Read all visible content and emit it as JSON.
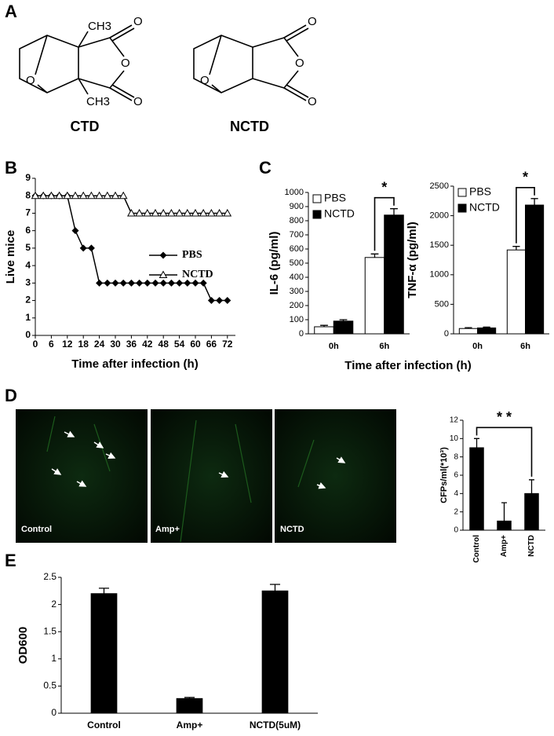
{
  "panel_labels": [
    "A",
    "B",
    "C",
    "D",
    "E"
  ],
  "structures": [
    {
      "name": "CTD",
      "atoms": [
        "CH3",
        "CH3",
        "O",
        "O",
        "O",
        "O"
      ]
    },
    {
      "name": "NCTD",
      "atoms": [
        "O",
        "O",
        "O",
        "O"
      ]
    }
  ],
  "images": [
    {
      "label": "Control"
    },
    {
      "label": "Amp+"
    },
    {
      "label": "NCTD"
    }
  ],
  "chart_data": [
    {
      "type": "line",
      "xlabel": "Time after infection (h)",
      "ylabel": "Live mice",
      "x": [
        0,
        3,
        6,
        9,
        12,
        15,
        18,
        21,
        24,
        27,
        30,
        33,
        36,
        39,
        42,
        45,
        48,
        51,
        54,
        57,
        60,
        63,
        66,
        69,
        72
      ],
      "series": [
        {
          "name": "PBS",
          "color": "#000000",
          "marker": "diamond",
          "values": [
            8,
            8,
            8,
            8,
            8,
            6,
            5,
            5,
            3,
            3,
            3,
            3,
            3,
            3,
            3,
            3,
            3,
            3,
            3,
            3,
            3,
            3,
            2,
            2,
            2
          ]
        },
        {
          "name": "NCTD",
          "color": "#000000",
          "marker": "triangle",
          "values": [
            8,
            8,
            8,
            8,
            8,
            8,
            8,
            8,
            8,
            8,
            8,
            8,
            7,
            7,
            7,
            7,
            7,
            7,
            7,
            7,
            7,
            7,
            7,
            7,
            7
          ]
        }
      ],
      "xlim": [
        0,
        75
      ],
      "xticks": [
        0,
        6,
        12,
        18,
        24,
        30,
        36,
        42,
        48,
        54,
        60,
        66,
        72
      ],
      "ylim": [
        0,
        9
      ],
      "yticks": [
        0,
        1,
        2,
        3,
        4,
        5,
        6,
        7,
        8,
        9
      ],
      "legend": "right"
    },
    {
      "type": "bar",
      "xlabel": "Time after infection (h)",
      "ylabel": "IL-6 (pg/ml)",
      "categories": [
        "0h",
        "6h"
      ],
      "series": [
        {
          "name": "PBS",
          "color": "#ffffff",
          "values": [
            50,
            540
          ],
          "errors": [
            10,
            25
          ]
        },
        {
          "name": "NCTD",
          "color": "#000000",
          "values": [
            90,
            840
          ],
          "errors": [
            10,
            45
          ]
        }
      ],
      "ylim": [
        0,
        1000
      ],
      "yticks": [
        0,
        100,
        200,
        300,
        400,
        500,
        600,
        700,
        800,
        900,
        1000
      ],
      "legend": "upper-left",
      "annotation": "*"
    },
    {
      "type": "bar",
      "ylabel": "TNF-α (pg/ml)",
      "categories": [
        "0h",
        "6h"
      ],
      "series": [
        {
          "name": "PBS",
          "color": "#ffffff",
          "values": [
            90,
            1420
          ],
          "errors": [
            15,
            60
          ]
        },
        {
          "name": "NCTD",
          "color": "#000000",
          "values": [
            100,
            2180
          ],
          "errors": [
            15,
            110
          ]
        }
      ],
      "ylim": [
        0,
        2500
      ],
      "yticks": [
        0,
        500,
        1000,
        1500,
        2000,
        2500
      ],
      "legend": "upper-left",
      "annotation": "*"
    },
    {
      "type": "bar",
      "ylabel": "CFPs/ml(*10³)",
      "categories": [
        "Control",
        "Amp+",
        "NCTD"
      ],
      "values": [
        9,
        1,
        4
      ],
      "errors": [
        1,
        2,
        1.5
      ],
      "color": "#000000",
      "ylim": [
        0,
        12
      ],
      "yticks": [
        0,
        2,
        4,
        6,
        8,
        10,
        12
      ],
      "annotation": "* *"
    },
    {
      "type": "bar",
      "ylabel": "OD600",
      "categories": [
        "Control",
        "Amp+",
        "NCTD(5uM)"
      ],
      "values": [
        2.2,
        0.27,
        2.25
      ],
      "errors": [
        0.1,
        0.02,
        0.12
      ],
      "color": "#000000",
      "ylim": [
        0,
        2.5
      ],
      "yticks": [
        0,
        0.5,
        1,
        1.5,
        2,
        2.5
      ]
    }
  ]
}
